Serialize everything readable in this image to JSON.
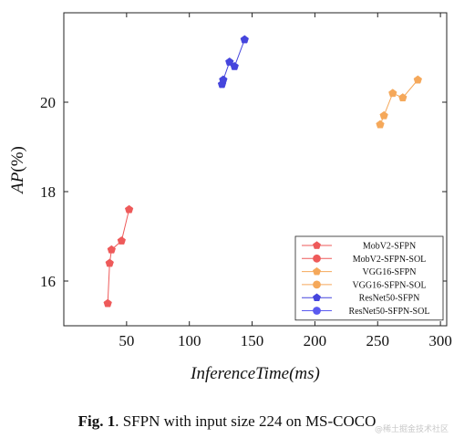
{
  "chart_data": {
    "type": "line",
    "title": "",
    "xlabel": "InferenceTime(ms)",
    "ylabel_main": "AP",
    "ylabel_unit": "(%)",
    "xlim": [
      0,
      305
    ],
    "ylim": [
      15.0,
      22.0
    ],
    "xticks": [
      50,
      100,
      150,
      200,
      250,
      300
    ],
    "yticks": [
      16,
      18,
      20
    ],
    "grid": false,
    "legend_position": "bottom-right",
    "series": [
      {
        "name": "MobV2-SFPN",
        "color": "#ee5a5a",
        "marker": "pentagon",
        "points": [
          [
            35,
            15.5
          ],
          [
            36.5,
            16.4
          ],
          [
            38,
            16.7
          ],
          [
            46,
            16.9
          ],
          [
            52,
            17.6
          ]
        ]
      },
      {
        "name": "MobV2-SFPN-SOL",
        "color": "#ee5a5a",
        "marker": "circle",
        "points": []
      },
      {
        "name": "VGG16-SFPN",
        "color": "#f5a85a",
        "marker": "pentagon",
        "points": [
          [
            252,
            19.5
          ],
          [
            255,
            19.7
          ],
          [
            262,
            20.2
          ],
          [
            270,
            20.1
          ],
          [
            282,
            20.5
          ]
        ]
      },
      {
        "name": "VGG16-SFPN-SOL",
        "color": "#f5a85a",
        "marker": "circle",
        "points": []
      },
      {
        "name": "ResNet50-SFPN",
        "color": "#4545dd",
        "marker": "pentagon",
        "points": [
          [
            126,
            20.4
          ],
          [
            127,
            20.5
          ],
          [
            132,
            20.9
          ],
          [
            136,
            20.8
          ],
          [
            144,
            21.4
          ]
        ]
      },
      {
        "name": "ResNet50-SFPN-SOL",
        "color": "#5a5af0",
        "marker": "circle",
        "points": []
      }
    ]
  },
  "caption": {
    "label": "Fig. 1",
    "text": ". SFPN with input size 224 on MS-COCO"
  },
  "watermark": "@稀土掘金技术社区"
}
